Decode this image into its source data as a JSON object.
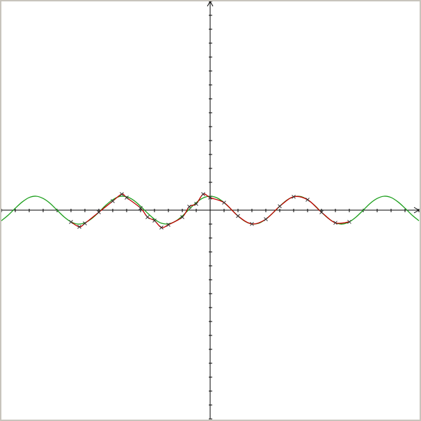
{
  "chart_data": {
    "type": "line",
    "xlim": [
      -15,
      15
    ],
    "ylim": [
      -15,
      15
    ],
    "xticks": [
      -15,
      -14,
      -13,
      -12,
      -11,
      -10,
      -9,
      -8,
      -7,
      -6,
      -5,
      -4,
      -3,
      -2,
      -1,
      0,
      1,
      2,
      3,
      4,
      5,
      6,
      7,
      8,
      9,
      10,
      11,
      12,
      13,
      14,
      15
    ],
    "yticks": [
      -15,
      -14,
      -13,
      -12,
      -11,
      -10,
      -9,
      -8,
      -7,
      -6,
      -5,
      -4,
      -3,
      -2,
      -1,
      0,
      1,
      2,
      3,
      4,
      5,
      6,
      7,
      8,
      9,
      10,
      11,
      12,
      13,
      14,
      15
    ],
    "grid": false,
    "series": [
      {
        "color": "#1a9e1a",
        "x": [
          -15,
          -14.5,
          -14,
          -13.5,
          -13,
          -12.5,
          -12,
          -11.5,
          -11,
          -10.5,
          -10,
          -9.5,
          -9,
          -8.5,
          -8,
          -7.5,
          -7,
          -6.5,
          -6,
          -5.5,
          -5,
          -4.5,
          -4,
          -3.5,
          -3,
          -2.5,
          -2,
          -1.5,
          -1,
          -0.5,
          0,
          0.5,
          1,
          1.5,
          2,
          2.5,
          3,
          3.5,
          4,
          4.5,
          5,
          5.5,
          6,
          6.5,
          7,
          7.5,
          8,
          8.5,
          9,
          9.5,
          10,
          10.5,
          11,
          11.5,
          12,
          12.5,
          13,
          13.5,
          14,
          14.5,
          15
        ],
        "values": [
          -0.76,
          -0.35,
          0.14,
          0.59,
          0.91,
          1.0,
          0.84,
          0.49,
          0,
          -0.48,
          -0.84,
          -1.0,
          -0.91,
          -0.6,
          -0.15,
          0.35,
          0.75,
          0.98,
          0.96,
          0.71,
          0.28,
          -0.21,
          -0.65,
          -0.94,
          -0.99,
          -0.8,
          -0.42,
          0.07,
          0.54,
          0.88,
          1,
          0.88,
          0.54,
          0.07,
          -0.42,
          -0.8,
          -0.99,
          -0.94,
          -0.65,
          -0.21,
          0.28,
          0.71,
          0.96,
          0.98,
          0.75,
          0.35,
          -0.15,
          -0.6,
          -0.91,
          -1.0,
          -0.84,
          -0.48,
          0,
          0.49,
          0.84,
          1.0,
          0.91,
          0.59,
          0.14,
          -0.35,
          -0.76
        ]
      },
      {
        "color": "#c00000",
        "marker": "x",
        "marker_color": "#333333",
        "x": [
          -10,
          -9.4,
          -9,
          -8,
          -7,
          -6.35,
          -6,
          -5,
          -4.5,
          -4,
          -3.5,
          -3,
          -2,
          -1.5,
          -1,
          -0.5,
          0,
          1,
          2,
          3,
          4,
          5,
          6,
          7,
          8,
          9,
          10
        ],
        "values": [
          -0.85,
          -1.2,
          -0.95,
          -0.15,
          0.65,
          1.15,
          0.9,
          0.15,
          -0.5,
          -0.75,
          -1.25,
          -1.05,
          -0.5,
          0.25,
          0.45,
          1.15,
          0.9,
          0.54,
          -0.42,
          -0.99,
          -0.65,
          0.28,
          0.96,
          0.75,
          -0.15,
          -0.91,
          -0.84
        ]
      }
    ]
  }
}
